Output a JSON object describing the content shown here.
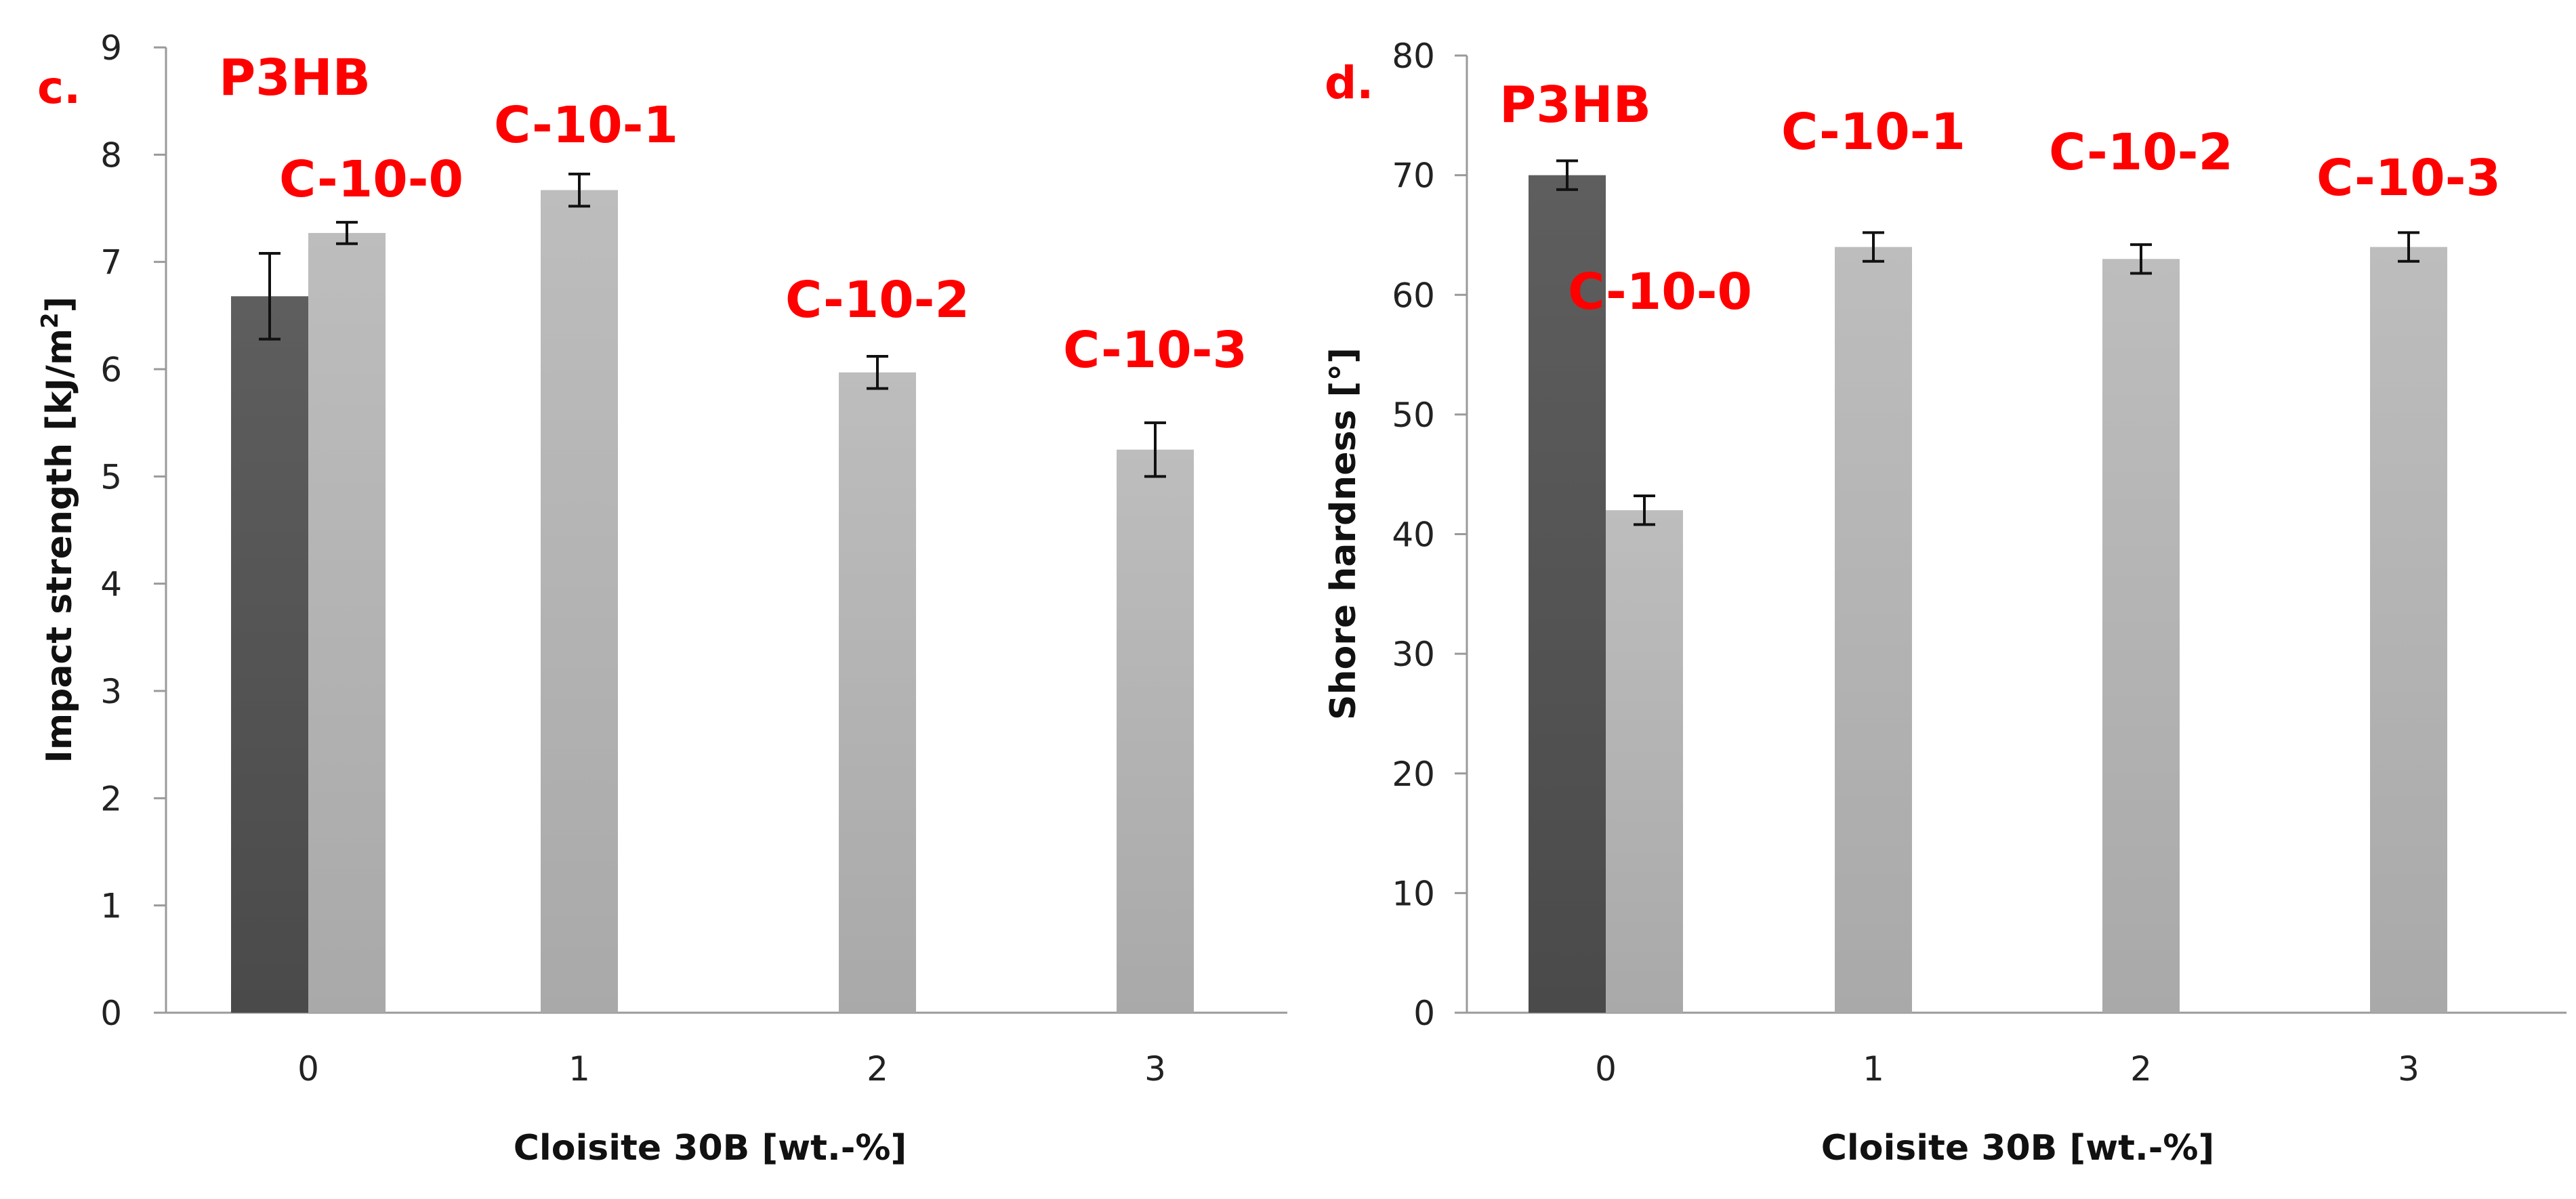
{
  "chart_data": [
    {
      "type": "bar",
      "panel_label": "c.",
      "title": "",
      "xlabel": "Cloisite 30B [wt.-%]",
      "ylabel": "Impact strength [kJ/m",
      "ylabel_sup": "2",
      "ylabel_end": "]",
      "ylim": [
        0,
        9
      ],
      "yticks": [
        "0",
        "1",
        "2",
        "3",
        "4",
        "5",
        "6",
        "7",
        "8",
        "9"
      ],
      "categories": [
        "0",
        "1",
        "2",
        "3"
      ],
      "grid": false,
      "bars": [
        {
          "category": "0",
          "series": "P3HB",
          "label": "P3HB",
          "value": 6.68,
          "error": 0.4,
          "color": "#555555"
        },
        {
          "category": "0",
          "series": "composite",
          "label": "C-10-0",
          "value": 7.27,
          "error": 0.1,
          "color": "#b3b3b3"
        },
        {
          "category": "1",
          "series": "composite",
          "label": "C-10-1",
          "value": 7.67,
          "error": 0.15,
          "color": "#b3b3b3"
        },
        {
          "category": "2",
          "series": "composite",
          "label": "C-10-2",
          "value": 5.97,
          "error": 0.15,
          "color": "#b3b3b3"
        },
        {
          "category": "3",
          "series": "composite",
          "label": "C-10-3",
          "value": 5.25,
          "error": 0.25,
          "color": "#b3b3b3"
        }
      ]
    },
    {
      "type": "bar",
      "panel_label": "d.",
      "title": "",
      "xlabel": "Cloisite 30B [wt.-%]",
      "ylabel": "Shore hardness [°]",
      "ylim": [
        0,
        80
      ],
      "yticks": [
        "0",
        "10",
        "20",
        "30",
        "40",
        "50",
        "60",
        "70",
        "80"
      ],
      "categories": [
        "0",
        "1",
        "2",
        "3"
      ],
      "grid": false,
      "bars": [
        {
          "category": "0",
          "series": "P3HB",
          "label": "P3HB",
          "value": 70,
          "error": 1.2,
          "color": "#555555"
        },
        {
          "category": "0",
          "series": "composite",
          "label": "C-10-0",
          "value": 42,
          "error": 1.2,
          "color": "#b3b3b3"
        },
        {
          "category": "1",
          "series": "composite",
          "label": "C-10-1",
          "value": 64,
          "error": 1.2,
          "color": "#b3b3b3"
        },
        {
          "category": "2",
          "series": "composite",
          "label": "C-10-2",
          "value": 63,
          "error": 1.2,
          "color": "#b3b3b3"
        },
        {
          "category": "3",
          "series": "composite",
          "label": "C-10-3",
          "value": 64,
          "error": 1.2,
          "color": "#b3b3b3"
        }
      ]
    }
  ]
}
